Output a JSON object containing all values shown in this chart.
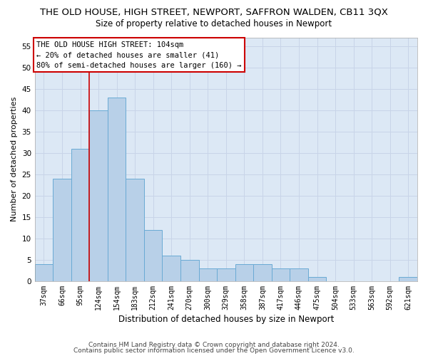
{
  "title": "THE OLD HOUSE, HIGH STREET, NEWPORT, SAFFRON WALDEN, CB11 3QX",
  "subtitle": "Size of property relative to detached houses in Newport",
  "xlabel": "Distribution of detached houses by size in Newport",
  "ylabel": "Number of detached properties",
  "categories": [
    "37sqm",
    "66sqm",
    "95sqm",
    "124sqm",
    "154sqm",
    "183sqm",
    "212sqm",
    "241sqm",
    "270sqm",
    "300sqm",
    "329sqm",
    "358sqm",
    "387sqm",
    "417sqm",
    "446sqm",
    "475sqm",
    "504sqm",
    "533sqm",
    "563sqm",
    "592sqm",
    "621sqm"
  ],
  "values": [
    4,
    24,
    31,
    40,
    43,
    24,
    12,
    6,
    5,
    3,
    3,
    4,
    4,
    3,
    3,
    1,
    0,
    0,
    0,
    0,
    1
  ],
  "bar_color": "#b8d0e8",
  "bar_edge_color": "#6aaad4",
  "vline_color": "#cc0000",
  "annotation_text": "THE OLD HOUSE HIGH STREET: 104sqm\n← 20% of detached houses are smaller (41)\n80% of semi-detached houses are larger (160) →",
  "annotation_box_color": "#ffffff",
  "annotation_box_edge": "#cc0000",
  "ylim": [
    0,
    57
  ],
  "yticks": [
    0,
    5,
    10,
    15,
    20,
    25,
    30,
    35,
    40,
    45,
    50,
    55
  ],
  "grid_color": "#c8d4e8",
  "background_color": "#dce8f5",
  "footer_line1": "Contains HM Land Registry data © Crown copyright and database right 2024.",
  "footer_line2": "Contains public sector information licensed under the Open Government Licence v3.0.",
  "title_fontsize": 9.5,
  "subtitle_fontsize": 8.5,
  "annotation_fontsize": 7.5,
  "footer_fontsize": 6.5,
  "xlabel_fontsize": 8.5,
  "ylabel_fontsize": 8
}
